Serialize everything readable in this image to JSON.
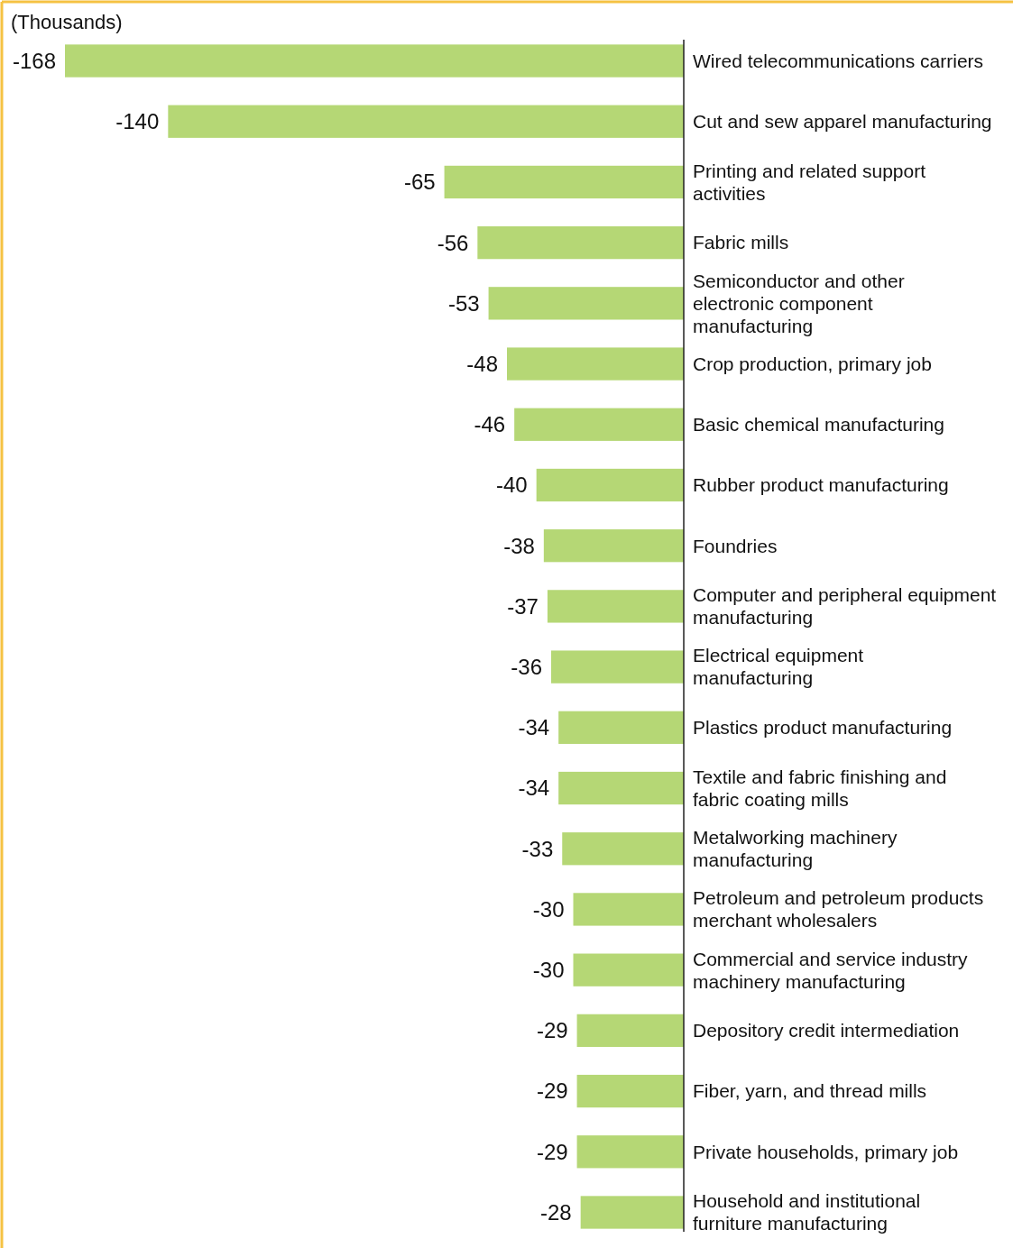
{
  "chart_data": {
    "type": "bar",
    "orientation": "horizontal",
    "xlabel": "(Thousands)",
    "data_labels": true,
    "color": "#b5d775",
    "categories": [
      "Wired telecommunications carriers",
      "Cut and sew apparel manufacturing",
      "Printing and related support activities",
      "Fabric mills",
      "Semiconductor and other electronic component manufacturing",
      "Crop production, primary job",
      "Basic chemical manufacturing",
      "Rubber product manufacturing",
      "Foundries",
      "Computer and peripheral equipment manufacturing",
      "Electrical equipment manufacturing",
      "Plastics product manufacturing",
      "Textile and fabric finishing and fabric coating mills",
      "Metalworking machinery manufacturing",
      "Petroleum and petroleum products merchant wholesalers",
      "Commercial and service industry machinery manufacturing",
      "Depository credit intermediation",
      "Fiber, yarn, and thread mills",
      "Private households, primary job",
      "Household and institutional furniture manufacturing"
    ],
    "values": [
      -168,
      -140,
      -65,
      -56,
      -53,
      -48,
      -46,
      -40,
      -38,
      -37,
      -36,
      -34,
      -34,
      -33,
      -30,
      -30,
      -29,
      -29,
      -29,
      -28
    ]
  }
}
